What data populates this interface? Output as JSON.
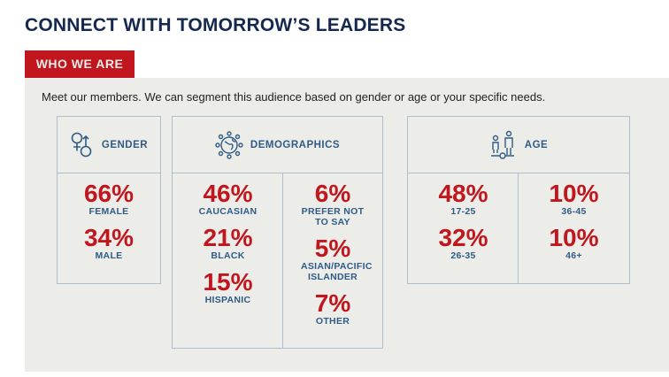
{
  "title": "CONNECT WITH TOMORROW’S LEADERS",
  "tab": "WHO WE ARE",
  "intro": "Meet our members. We can segment this audience based on gender or age or your specific needs.",
  "gender": {
    "label": "GENDER",
    "icon": "gender-icon",
    "stats": [
      {
        "pct": "66%",
        "label": "FEMALE"
      },
      {
        "pct": "34%",
        "label": "MALE"
      }
    ]
  },
  "demographics": {
    "label": "DEMOGRAPHICS",
    "icon": "globe-people-icon",
    "col1": [
      {
        "pct": "46%",
        "label": "CAUCASIAN"
      },
      {
        "pct": "21%",
        "label": "BLACK"
      },
      {
        "pct": "15%",
        "label": "HISPANIC"
      }
    ],
    "col2": [
      {
        "pct": "6%",
        "label": "PREFER NOT TO SAY"
      },
      {
        "pct": "5%",
        "label": "ASIAN/PACIFIC ISLANDER"
      },
      {
        "pct": "7%",
        "label": "OTHER"
      }
    ]
  },
  "age": {
    "label": "AGE",
    "icon": "family-age-icon",
    "col1": [
      {
        "pct": "48%",
        "label": "17-25"
      },
      {
        "pct": "32%",
        "label": "26-35"
      }
    ],
    "col2": [
      {
        "pct": "10%",
        "label": "36-45"
      },
      {
        "pct": "10%",
        "label": "46+"
      }
    ]
  },
  "colors": {
    "red": "#c1161d",
    "blue": "#2f5b86",
    "navy": "#14294d",
    "panel": "#ecece8"
  }
}
